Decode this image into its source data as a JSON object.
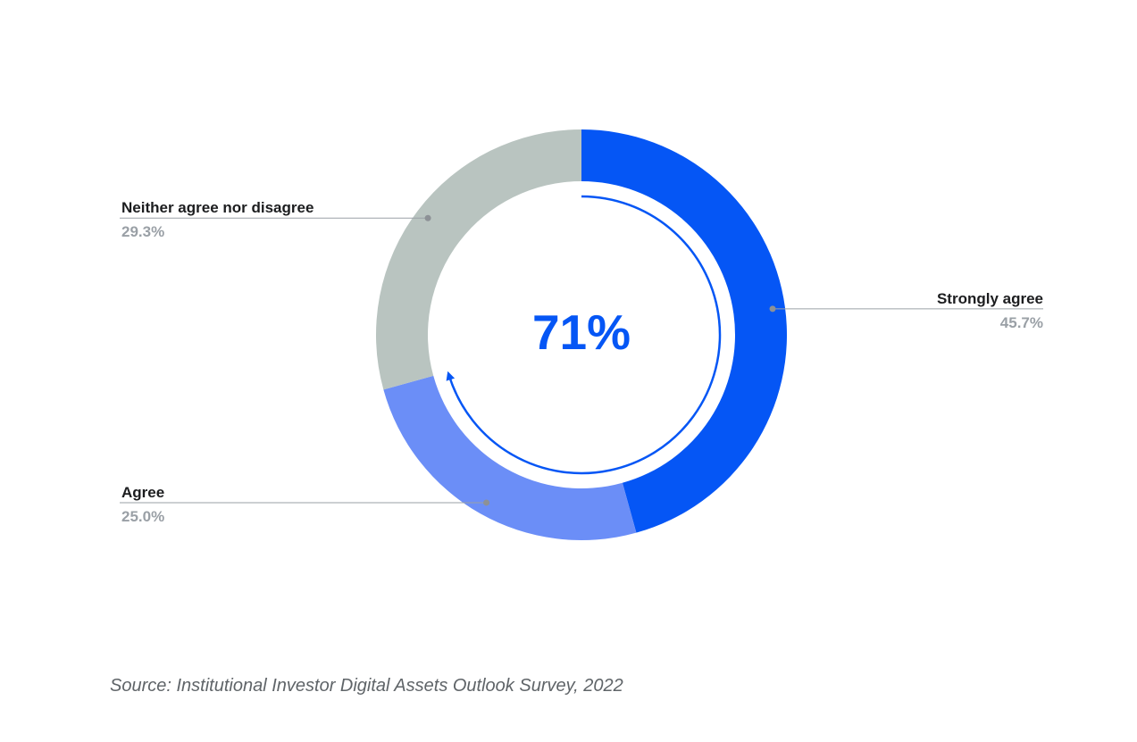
{
  "chart_data": {
    "type": "pie",
    "subtype": "donut",
    "title": "",
    "center_label": "71%",
    "direction": "clockwise",
    "start_angle_deg": 0,
    "legend_position": "callouts",
    "slices": [
      {
        "label": "Strongly agree",
        "value": 45.7,
        "display": "45.7%",
        "color": "#0556f5",
        "side": "right"
      },
      {
        "label": "Agree",
        "value": 25.0,
        "display": "25.0%",
        "color": "#6b8ef7",
        "side": "left"
      },
      {
        "label": "Neither agree nor disagree",
        "value": 29.3,
        "display": "29.3%",
        "color": "#b9c4c0",
        "side": "left"
      }
    ],
    "inner_progress_arc": {
      "percent": 70.7,
      "color": "#0556f5"
    }
  },
  "source": {
    "text": "Source: Institutional Investor Digital Assets Outlook Survey, 2022"
  },
  "colors": {
    "label_text": "#1c1d1f",
    "percent_text": "#9aa0a6",
    "leader_line": "#9aa0a6",
    "leader_dot": "#8d9196",
    "center_text": "#0556f5",
    "source_text": "#5f6468",
    "background": "#ffffff"
  }
}
